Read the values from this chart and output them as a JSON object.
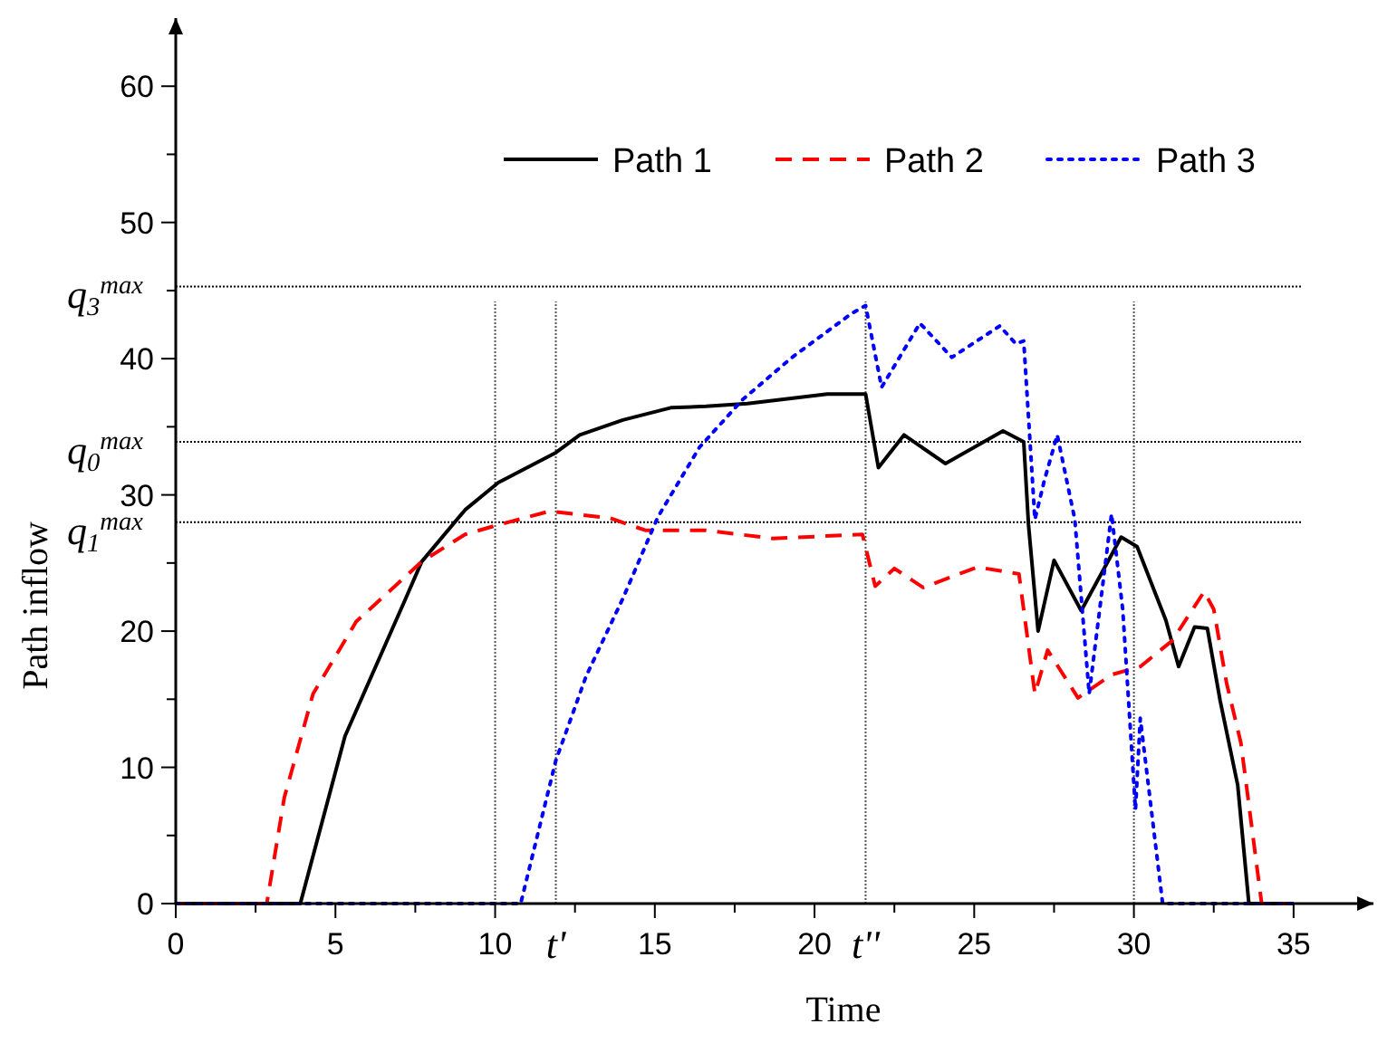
{
  "chart_data": {
    "type": "line",
    "xlabel": "Time",
    "ylabel": "Path inflow",
    "xlim": [
      0,
      37.5
    ],
    "ylim": [
      0,
      65
    ],
    "xticks": [
      0,
      {
        "value": 2.5,
        "label": null
      },
      5,
      {
        "value": 7.5,
        "label": null
      },
      10,
      {
        "value": 12.5,
        "label": null
      },
      15,
      {
        "value": 17.5,
        "label": null
      },
      20,
      {
        "value": 22.5,
        "label": null
      },
      25,
      {
        "value": 27.5,
        "label": null
      },
      30,
      {
        "value": 32.5,
        "label": null
      },
      35
    ],
    "yticks": [
      0,
      {
        "value": 5,
        "label": null
      },
      10,
      {
        "value": 15,
        "label": null
      },
      20,
      {
        "value": 25,
        "label": null
      },
      30,
      {
        "value": 35,
        "label": null
      },
      40,
      {
        "value": 45,
        "label": null
      },
      50,
      {
        "value": 55,
        "label": null
      },
      60
    ],
    "series": [
      {
        "name": "Path 1",
        "color": "#000000",
        "line_style": "solid",
        "x": [
          0,
          3.9,
          5.3,
          7.2,
          7.7,
          9.06,
          10.1,
          11.9,
          12.65,
          14.0,
          15.5,
          16.6,
          17.9,
          20.4,
          21.6,
          22.0,
          22.8,
          24.1,
          25.9,
          26.55,
          26.7,
          27.0,
          27.5,
          28.35,
          29.6,
          30.1,
          31.0,
          31.4,
          31.9,
          32.3,
          32.7,
          33.25,
          33.6,
          35
        ],
        "values": [
          0,
          0,
          12.3,
          22.4,
          25.1,
          28.9,
          30.9,
          33.1,
          34.4,
          35.5,
          36.4,
          36.5,
          36.7,
          37.4,
          37.4,
          32.0,
          34.4,
          32.3,
          34.7,
          33.9,
          27.8,
          20.0,
          25.2,
          21.5,
          26.9,
          26.2,
          20.8,
          17.4,
          20.3,
          20.2,
          14.9,
          8.7,
          0,
          0
        ]
      },
      {
        "name": "Path 2",
        "color": "#ff0000",
        "line_style": "dashed",
        "x": [
          0,
          2.85,
          3.4,
          4.3,
          5.65,
          7.7,
          9.06,
          10.1,
          11.7,
          13.6,
          14.7,
          16.6,
          18.7,
          21.5,
          21.9,
          22.5,
          23.4,
          25.1,
          26.4,
          26.9,
          27.3,
          28.25,
          29.3,
          30.2,
          31.2,
          32.2,
          32.5,
          32.9,
          33.35,
          34.0,
          35
        ],
        "values": [
          0,
          0,
          7.8,
          15.4,
          20.7,
          25.1,
          27.1,
          27.8,
          28.8,
          28.3,
          27.4,
          27.4,
          26.8,
          27.1,
          23.3,
          24.6,
          23.2,
          24.7,
          24.2,
          15.4,
          18.6,
          15.1,
          16.8,
          17.4,
          19.3,
          22.9,
          21.6,
          16.2,
          11.8,
          0,
          0
        ]
      },
      {
        "name": "Path 3",
        "color": "#0000ff",
        "line_style": "dotted",
        "x": [
          0,
          10.8,
          11.9,
          12.85,
          14.0,
          15.1,
          16.4,
          17.75,
          19.3,
          21.15,
          21.6,
          22.1,
          23.3,
          24.3,
          25.8,
          26.3,
          26.55,
          26.9,
          27.2,
          27.6,
          28.15,
          28.6,
          29.3,
          29.65,
          30.05,
          30.2,
          30.9,
          35
        ],
        "values": [
          0,
          0,
          10.5,
          16.7,
          22.4,
          28.4,
          33.5,
          37.0,
          40.1,
          43.3,
          43.9,
          37.9,
          42.6,
          40.1,
          42.4,
          41.1,
          41.3,
          28.2,
          31.1,
          34.4,
          28.2,
          15.4,
          28.6,
          21.6,
          6.9,
          13.6,
          0,
          0
        ]
      }
    ],
    "ref_lines": [
      {
        "axis": "y",
        "value": 45.3,
        "label": "q$_{3}$$^{max}$",
        "color": "#000000",
        "line_style": "dotted"
      },
      {
        "axis": "y",
        "value": 33.9,
        "label": "q$_{0}$$^{max}$",
        "color": "#000000",
        "line_style": "dotted"
      },
      {
        "axis": "y",
        "value": 28.0,
        "label": "q$_{1}$$^{max}$",
        "color": "#000000",
        "line_style": "dotted"
      },
      {
        "axis": "x",
        "value": 10,
        "color": "#555555",
        "line_style": "dotted"
      },
      {
        "axis": "x",
        "value": 11.9,
        "label": "t'",
        "color": "#555555",
        "line_style": "dotted"
      },
      {
        "axis": "x",
        "value": 21.6,
        "label": "t''",
        "color": "#555555",
        "line_style": "dotted"
      },
      {
        "axis": "x",
        "value": 30,
        "color": "#555555",
        "line_style": "dotted"
      }
    ],
    "legend": "top right",
    "grid": false
  }
}
